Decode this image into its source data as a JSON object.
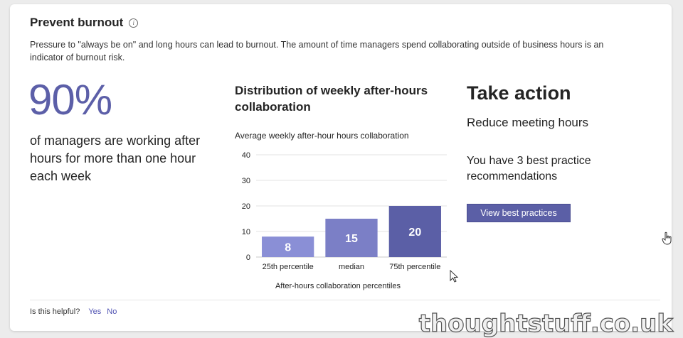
{
  "card": {
    "title": "Prevent burnout",
    "info_icon": "info-icon",
    "description": "Pressure to \"always be on\" and long hours can lead to burnout. The amount of time managers spend collaborating outside of business hours is an indicator of burnout risk."
  },
  "stat": {
    "percent": "90%",
    "text": "of managers are working after hours for more than one hour each week"
  },
  "distribution": {
    "title": "Distribution of weekly after-hours collaboration",
    "subtitle": "Average weekly after-hour hours collaboration"
  },
  "chart_data": {
    "type": "bar",
    "title": "Average weekly after-hour hours collaboration",
    "categories": [
      "25th percentile",
      "median",
      "75th percentile"
    ],
    "values": [
      8,
      15,
      20
    ],
    "data_labels": [
      "8",
      "15",
      "20"
    ],
    "colors": [
      "#8a8fd6",
      "#7b7fc6",
      "#5b5fa6"
    ],
    "yticks": [
      "40",
      "30",
      "20",
      "10",
      "0"
    ],
    "ylim": [
      0,
      40
    ],
    "xlabel": "After-hours collaboration percentiles",
    "ylabel": "",
    "grid": true
  },
  "action": {
    "title": "Take action",
    "subtitle": "Reduce meeting hours",
    "recommendations": "You have 3 best practice recommendations",
    "button_label": "View best practices"
  },
  "footer": {
    "helpful_label": "Is this helpful?",
    "yes": "Yes",
    "no": "No"
  },
  "watermark": "thoughtstuff.co.uk",
  "colors": {
    "accent": "#5b5fa6",
    "link": "#4f52b2",
    "big_number": "#5c5fa8"
  }
}
